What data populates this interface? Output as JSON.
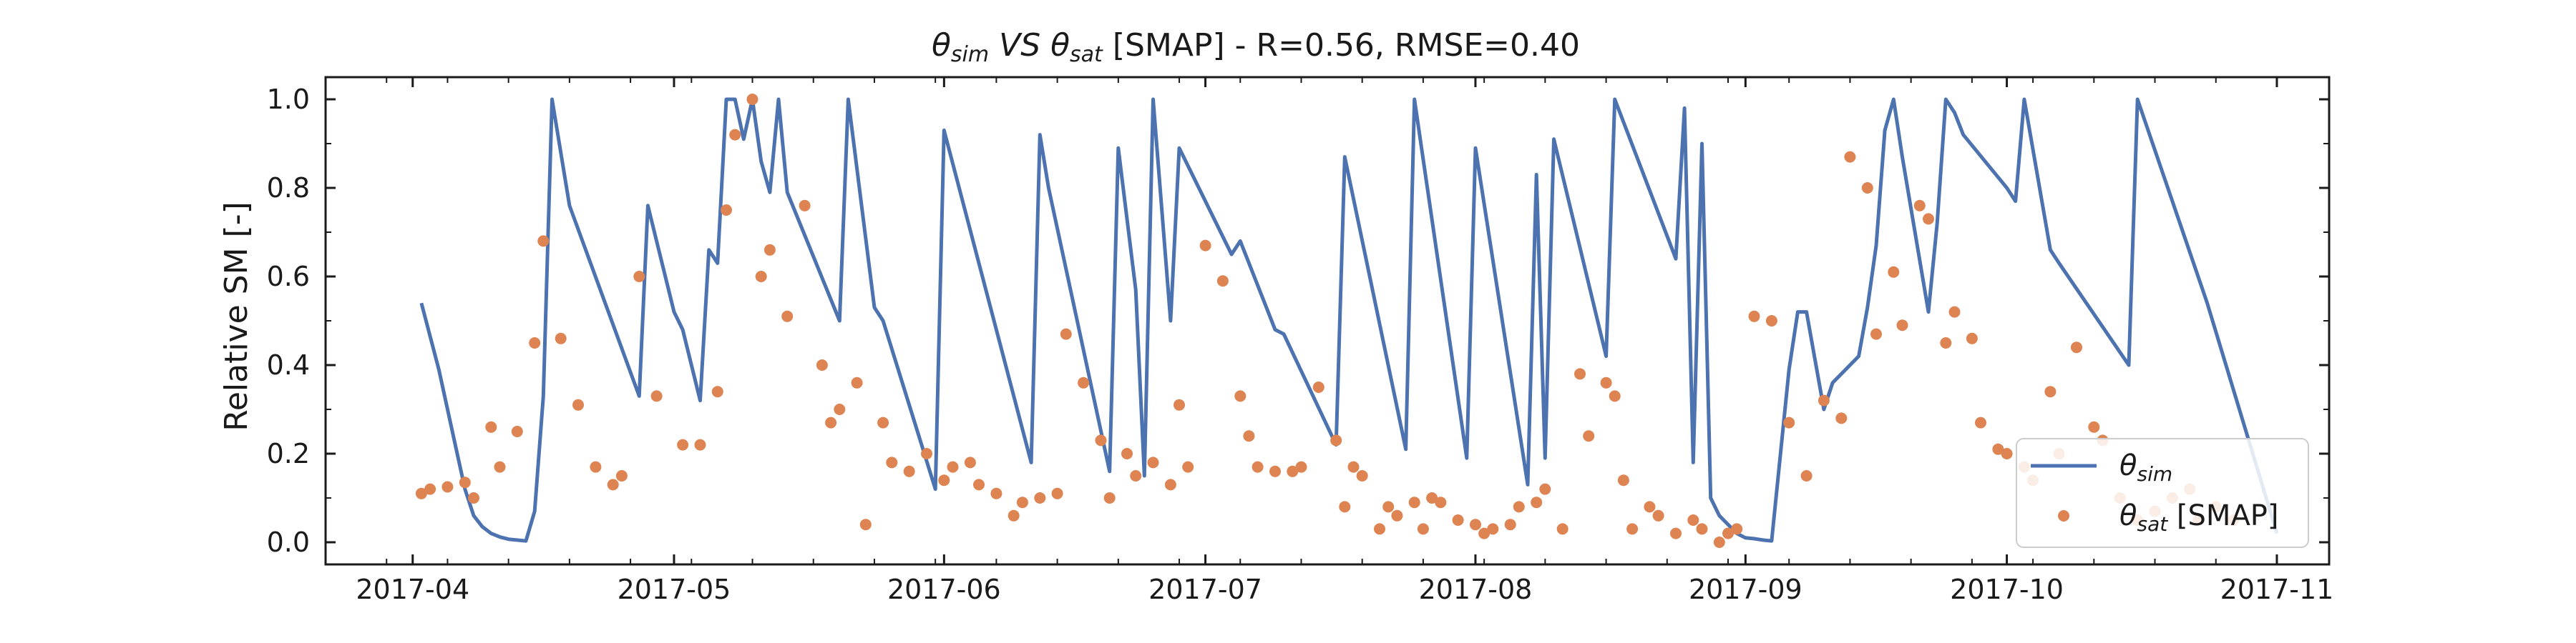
{
  "chart_data": {
    "type": "line",
    "title": {
      "sim_symbol": "θ",
      "sim_sub": "sim",
      "vs": " VS ",
      "sat_symbol": "θ",
      "sat_sub": "sat",
      "rest": " [SMAP] - R=0.56, RMSE=0.40"
    },
    "ylabel": "Relative SM [-]",
    "xlabel": "",
    "x_ticks": [
      "2017-04-01",
      "2017-05-01",
      "2017-06-01",
      "2017-07-01",
      "2017-08-01",
      "2017-09-01",
      "2017-10-01",
      "2017-11-01"
    ],
    "x_tick_labels": [
      "2017-04",
      "2017-05",
      "2017-06",
      "2017-07",
      "2017-08",
      "2017-09",
      "2017-10",
      "2017-11"
    ],
    "xlim": [
      "2017-03-22",
      "2017-11-07"
    ],
    "y_ticks": [
      0.0,
      0.2,
      0.4,
      0.6,
      0.8,
      1.0
    ],
    "y_tick_labels": [
      "0.0",
      "0.2",
      "0.4",
      "0.6",
      "0.8",
      "1.0"
    ],
    "ylim": [
      -0.05,
      1.05
    ],
    "grid": false,
    "legend_position": "lower-right",
    "colors": {
      "sim": "#4c72b0",
      "sat": "#dd8452"
    },
    "series": [
      {
        "name_symbol": "θ",
        "name_sub": "sim",
        "name_suffix": "",
        "kind": "line",
        "x": [
          "2017-04-02",
          "2017-04-04",
          "2017-04-06",
          "2017-04-07",
          "2017-04-08",
          "2017-04-09",
          "2017-04-10",
          "2017-04-11",
          "2017-04-12",
          "2017-04-14",
          "2017-04-15",
          "2017-04-16",
          "2017-04-17",
          "2017-04-18",
          "2017-04-19",
          "2017-04-27",
          "2017-04-28",
          "2017-05-01",
          "2017-05-02",
          "2017-05-03",
          "2017-05-04",
          "2017-05-05",
          "2017-05-06",
          "2017-05-07",
          "2017-05-08",
          "2017-05-09",
          "2017-05-10",
          "2017-05-11",
          "2017-05-12",
          "2017-05-13",
          "2017-05-14",
          "2017-05-20",
          "2017-05-21",
          "2017-05-24",
          "2017-05-25",
          "2017-05-31",
          "2017-06-01",
          "2017-06-11",
          "2017-06-12",
          "2017-06-13",
          "2017-06-20",
          "2017-06-21",
          "2017-06-23",
          "2017-06-24",
          "2017-06-25",
          "2017-06-27",
          "2017-06-28",
          "2017-07-04",
          "2017-07-05",
          "2017-07-09",
          "2017-07-10",
          "2017-07-16",
          "2017-07-17",
          "2017-07-24",
          "2017-07-25",
          "2017-07-31",
          "2017-08-01",
          "2017-08-07",
          "2017-08-08",
          "2017-08-09",
          "2017-08-10",
          "2017-08-16",
          "2017-08-17",
          "2017-08-24",
          "2017-08-25",
          "2017-08-26",
          "2017-08-27",
          "2017-08-28",
          "2017-08-29",
          "2017-08-31",
          "2017-09-01",
          "2017-09-02",
          "2017-09-03",
          "2017-09-04",
          "2017-09-06",
          "2017-09-07",
          "2017-09-08",
          "2017-09-10",
          "2017-09-11",
          "2017-09-14",
          "2017-09-15",
          "2017-09-16",
          "2017-09-17",
          "2017-09-18",
          "2017-09-19",
          "2017-09-22",
          "2017-09-23",
          "2017-09-24",
          "2017-09-25",
          "2017-09-26",
          "2017-10-01",
          "2017-10-02",
          "2017-10-03",
          "2017-10-06",
          "2017-10-07",
          "2017-10-15",
          "2017-10-16",
          "2017-10-24",
          "2017-11-01"
        ],
        "y": [
          0.54,
          0.39,
          0.21,
          0.12,
          0.06,
          0.035,
          0.02,
          0.012,
          0.007,
          0.003,
          0.07,
          0.33,
          1.0,
          0.88,
          0.76,
          0.33,
          0.76,
          0.52,
          0.48,
          0.4,
          0.32,
          0.66,
          0.63,
          1.0,
          1.0,
          0.91,
          1.0,
          0.86,
          0.79,
          1.0,
          0.79,
          0.5,
          1.0,
          0.53,
          0.5,
          0.12,
          0.93,
          0.18,
          0.92,
          0.8,
          0.16,
          0.89,
          0.57,
          0.15,
          1.0,
          0.5,
          0.89,
          0.65,
          0.68,
          0.48,
          0.47,
          0.22,
          0.87,
          0.21,
          1.0,
          0.19,
          0.89,
          0.13,
          0.83,
          0.19,
          0.91,
          0.42,
          1.0,
          0.64,
          0.98,
          0.18,
          0.9,
          0.1,
          0.06,
          0.02,
          0.01,
          0.008,
          0.005,
          0.003,
          0.39,
          0.52,
          0.52,
          0.3,
          0.36,
          0.42,
          0.53,
          0.67,
          0.93,
          1.0,
          0.87,
          0.52,
          0.72,
          1.0,
          0.97,
          0.92,
          0.8,
          0.77,
          1.0,
          0.66,
          0.63,
          0.4,
          1.0,
          0.54,
          0.02
        ]
      },
      {
        "name_symbol": "θ",
        "name_sub": "sat",
        "name_suffix": " [SMAP]",
        "kind": "scatter",
        "x": [
          "2017-04-02",
          "2017-04-03",
          "2017-04-05",
          "2017-04-07",
          "2017-04-08",
          "2017-04-10",
          "2017-04-11",
          "2017-04-13",
          "2017-04-15",
          "2017-04-16",
          "2017-04-18",
          "2017-04-20",
          "2017-04-22",
          "2017-04-24",
          "2017-04-25",
          "2017-04-27",
          "2017-04-29",
          "2017-05-02",
          "2017-05-04",
          "2017-05-06",
          "2017-05-07",
          "2017-05-08",
          "2017-05-10",
          "2017-05-11",
          "2017-05-12",
          "2017-05-14",
          "2017-05-16",
          "2017-05-18",
          "2017-05-19",
          "2017-05-20",
          "2017-05-22",
          "2017-05-23",
          "2017-05-25",
          "2017-05-26",
          "2017-05-28",
          "2017-05-30",
          "2017-06-01",
          "2017-06-02",
          "2017-06-04",
          "2017-06-05",
          "2017-06-07",
          "2017-06-09",
          "2017-06-10",
          "2017-06-12",
          "2017-06-14",
          "2017-06-15",
          "2017-06-17",
          "2017-06-19",
          "2017-06-20",
          "2017-06-22",
          "2017-06-23",
          "2017-06-25",
          "2017-06-27",
          "2017-06-28",
          "2017-06-29",
          "2017-07-01",
          "2017-07-03",
          "2017-07-05",
          "2017-07-06",
          "2017-07-07",
          "2017-07-09",
          "2017-07-11",
          "2017-07-12",
          "2017-07-14",
          "2017-07-16",
          "2017-07-17",
          "2017-07-18",
          "2017-07-19",
          "2017-07-21",
          "2017-07-22",
          "2017-07-23",
          "2017-07-25",
          "2017-07-26",
          "2017-07-27",
          "2017-07-28",
          "2017-07-30",
          "2017-08-01",
          "2017-08-02",
          "2017-08-03",
          "2017-08-05",
          "2017-08-06",
          "2017-08-08",
          "2017-08-09",
          "2017-08-11",
          "2017-08-13",
          "2017-08-14",
          "2017-08-16",
          "2017-08-17",
          "2017-08-18",
          "2017-08-19",
          "2017-08-21",
          "2017-08-22",
          "2017-08-24",
          "2017-08-26",
          "2017-08-27",
          "2017-08-29",
          "2017-08-30",
          "2017-08-31",
          "2017-09-02",
          "2017-09-04",
          "2017-09-06",
          "2017-09-08",
          "2017-09-10",
          "2017-09-12",
          "2017-09-13",
          "2017-09-15",
          "2017-09-16",
          "2017-09-18",
          "2017-09-19",
          "2017-09-21",
          "2017-09-22",
          "2017-09-24",
          "2017-09-25",
          "2017-09-27",
          "2017-09-28",
          "2017-09-30",
          "2017-10-01",
          "2017-10-03",
          "2017-10-04",
          "2017-10-06",
          "2017-10-07",
          "2017-10-09",
          "2017-10-11",
          "2017-10-12",
          "2017-10-14",
          "2017-10-16",
          "2017-10-18",
          "2017-10-20",
          "2017-10-22",
          "2017-10-23",
          "2017-10-25",
          "2017-10-27"
        ],
        "y": [
          0.11,
          0.12,
          0.125,
          0.135,
          0.1,
          0.26,
          0.17,
          0.25,
          0.45,
          0.68,
          0.46,
          0.31,
          0.17,
          0.13,
          0.15,
          0.6,
          0.33,
          0.22,
          0.22,
          0.34,
          0.75,
          0.92,
          1.0,
          0.6,
          0.66,
          0.51,
          0.76,
          0.4,
          0.27,
          0.3,
          0.36,
          0.04,
          0.27,
          0.18,
          0.16,
          0.2,
          0.14,
          0.17,
          0.18,
          0.13,
          0.11,
          0.06,
          0.09,
          0.1,
          0.11,
          0.47,
          0.36,
          0.23,
          0.1,
          0.2,
          0.15,
          0.18,
          0.13,
          0.31,
          0.17,
          0.67,
          0.59,
          0.33,
          0.24,
          0.17,
          0.16,
          0.16,
          0.17,
          0.35,
          0.23,
          0.08,
          0.17,
          0.15,
          0.03,
          0.08,
          0.06,
          0.09,
          0.03,
          0.1,
          0.09,
          0.05,
          0.04,
          0.02,
          0.03,
          0.04,
          0.08,
          0.09,
          0.12,
          0.03,
          0.38,
          0.24,
          0.36,
          0.33,
          0.14,
          0.03,
          0.08,
          0.06,
          0.02,
          0.05,
          0.03,
          0.0,
          0.02,
          0.03,
          0.51,
          0.5,
          0.27,
          0.15,
          0.32,
          0.28,
          0.87,
          0.8,
          0.47,
          0.61,
          0.49,
          0.76,
          0.73,
          0.45,
          0.52,
          0.46,
          0.27,
          0.21,
          0.2,
          0.17,
          0.14,
          0.34,
          0.2,
          0.44,
          0.26,
          0.23,
          0.1,
          0.05,
          0.07,
          0.1,
          0.12,
          0.05,
          0.08,
          0.05
        ]
      }
    ]
  }
}
